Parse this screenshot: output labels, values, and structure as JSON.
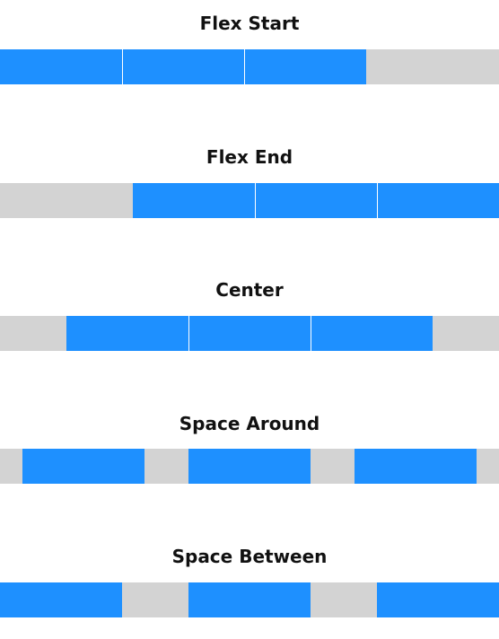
{
  "colors": {
    "item": "#1e90ff",
    "track": "#d3d3d3",
    "separator": "#ffffff",
    "title": "#111111"
  },
  "sections": [
    {
      "title": "Flex Start",
      "justify": "flex-start",
      "item_count": 3
    },
    {
      "title": "Flex End",
      "justify": "flex-end",
      "item_count": 3
    },
    {
      "title": "Center",
      "justify": "center",
      "item_count": 3
    },
    {
      "title": "Space Around",
      "justify": "space-around",
      "item_count": 3
    },
    {
      "title": "Space Between",
      "justify": "space-between",
      "item_count": 3
    }
  ]
}
